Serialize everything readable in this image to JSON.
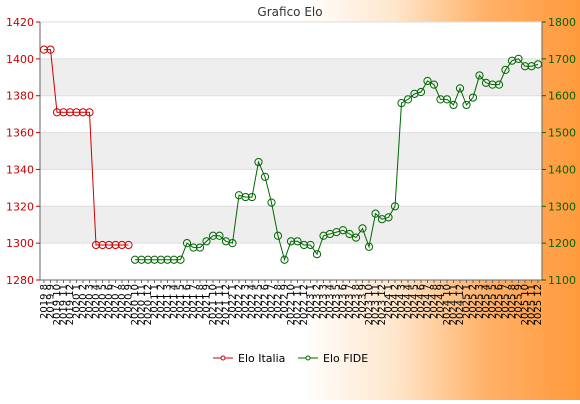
{
  "chart_data": {
    "type": "line",
    "title": "Grafico Elo",
    "categories": [
      "2019 8",
      "2019 9",
      "2019 10",
      "2019 11",
      "2019 12",
      "2020 1",
      "2020 2",
      "2020 3",
      "2020 4",
      "2020 5",
      "2020 6",
      "2020 7",
      "2020 8",
      "2020 9",
      "2020 10",
      "2020 11",
      "2020 12",
      "2021 1",
      "2021 2",
      "2021 3",
      "2021 4",
      "2021 5",
      "2021 6",
      "2021 7",
      "2021 8",
      "2021 9",
      "2021 10",
      "2021 11",
      "2021 12",
      "2022 1",
      "2022 2",
      "2022 3",
      "2022 4",
      "2022 5",
      "2022 6",
      "2022 7",
      "2022 8",
      "2022 9",
      "2022 10",
      "2022 11",
      "2022 12",
      "2023 1",
      "2023 2",
      "2023 3",
      "2023 4",
      "2023 5",
      "2023 6",
      "2023 7",
      "2023 8",
      "2023 9",
      "2023 10",
      "2023 11",
      "2023 12",
      "2024 1",
      "2024 2",
      "2024 3",
      "2024 4",
      "2024 5",
      "2024 6",
      "2024 7",
      "2024 8",
      "2024 9",
      "2024 10",
      "2024 11",
      "2024 12",
      "2025 1",
      "2025 2",
      "2025 3",
      "2025 4",
      "2025 5",
      "2025 6",
      "2025 7",
      "2025 8",
      "2025 9",
      "2025 10",
      "2025 11",
      "2025 12"
    ],
    "y_left": {
      "range": [
        1280,
        1420
      ],
      "ticks": [
        1280,
        1300,
        1320,
        1340,
        1360,
        1380,
        1400,
        1420
      ]
    },
    "y_right": {
      "range": [
        1100,
        1800
      ],
      "ticks": [
        1100,
        1200,
        1300,
        1400,
        1500,
        1600,
        1700,
        1800
      ]
    },
    "grid": true,
    "legend_position": "bottom",
    "series": [
      {
        "name": "Elo Italia",
        "axis": "left",
        "color": "#cc0000",
        "values": [
          1405,
          1405,
          1371,
          1371,
          1371,
          1371,
          1371,
          1371,
          1299,
          1299,
          1299,
          1299,
          1299,
          1299,
          null,
          null,
          null,
          null,
          null,
          null,
          null,
          null,
          null,
          null,
          null,
          null,
          null,
          null,
          null,
          null,
          null,
          null,
          null,
          null,
          null,
          null,
          null,
          null,
          null,
          null,
          null,
          null,
          null,
          null,
          null,
          null,
          null,
          null,
          null,
          null,
          null,
          null,
          null,
          null,
          null,
          null,
          null,
          null,
          null,
          null,
          null,
          null,
          null,
          null,
          null,
          null,
          null,
          null,
          null,
          null,
          null,
          null,
          null,
          null,
          null,
          null,
          null
        ]
      },
      {
        "name": "Elo FIDE",
        "axis": "right",
        "color": "#006600",
        "values": [
          null,
          null,
          null,
          null,
          null,
          null,
          null,
          null,
          null,
          null,
          null,
          null,
          null,
          null,
          1155,
          1155,
          1155,
          1155,
          1155,
          1155,
          1155,
          1155,
          1200,
          1188,
          1188,
          1205,
          1220,
          1220,
          1205,
          1200,
          1330,
          1325,
          1325,
          1420,
          1380,
          1310,
          1220,
          1155,
          1205,
          1205,
          1195,
          1195,
          1170,
          1220,
          1225,
          1230,
          1235,
          1225,
          1215,
          1240,
          1190,
          1280,
          1265,
          1270,
          1300,
          1580,
          1590,
          1605,
          1610,
          1640,
          1630,
          1590,
          1590,
          1575,
          1620,
          1575,
          1595,
          1655,
          1635,
          1630,
          1630,
          1670,
          1695,
          1700,
          1680,
          1680,
          1685
        ]
      }
    ]
  }
}
